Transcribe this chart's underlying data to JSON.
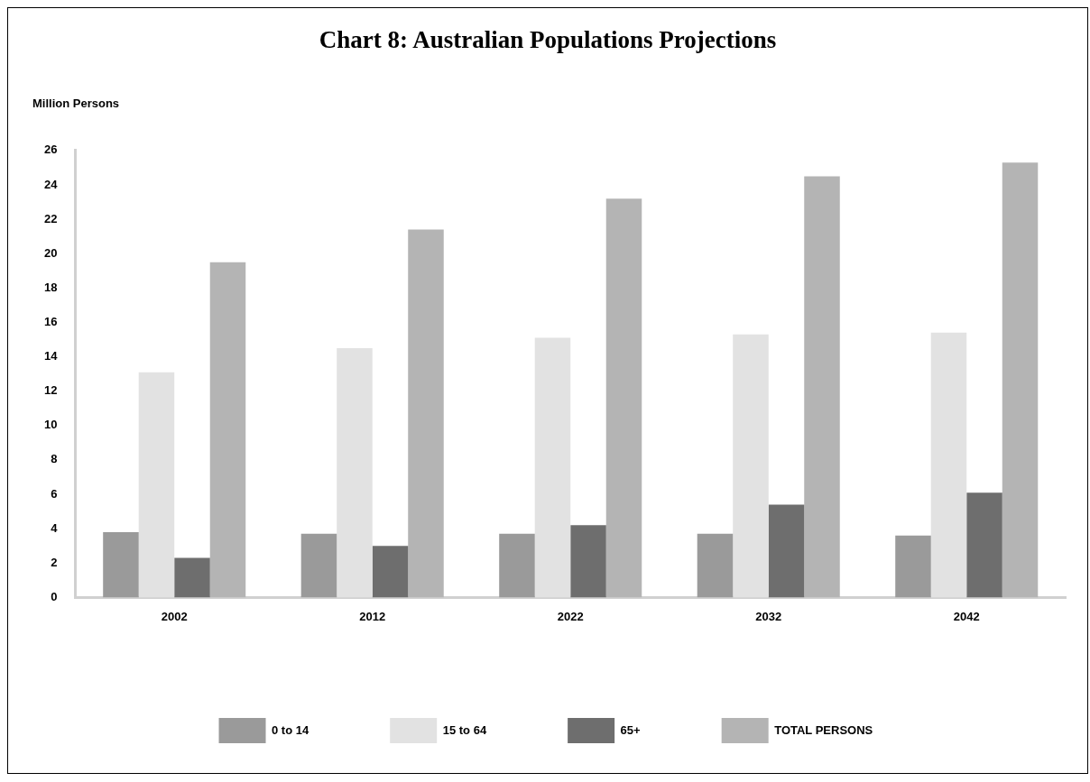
{
  "chart_data": {
    "type": "bar",
    "title": "Chart 8:  Australian Populations Projections",
    "ylabel": "Million Persons",
    "categories": [
      "2002",
      "2012",
      "2022",
      "2032",
      "2042"
    ],
    "series": [
      {
        "name": "0 to 14",
        "color": "#9a9a9a",
        "values": [
          3.8,
          3.7,
          3.7,
          3.7,
          3.6
        ]
      },
      {
        "name": "15 to 64",
        "color": "#e2e2e2",
        "values": [
          13.1,
          14.5,
          15.1,
          15.3,
          15.4
        ]
      },
      {
        "name": "65+",
        "color": "#6e6e6e",
        "values": [
          2.3,
          3.0,
          4.2,
          5.4,
          6.1
        ]
      },
      {
        "name": "TOTAL PERSONS",
        "color": "#b4b4b4",
        "values": [
          19.5,
          21.4,
          23.2,
          24.5,
          25.3
        ]
      }
    ],
    "ylim": [
      0,
      26
    ],
    "yticks": [
      0,
      2,
      4,
      6,
      8,
      10,
      12,
      14,
      16,
      18,
      20,
      22,
      24,
      26
    ],
    "grid": false,
    "legend": "bottom"
  }
}
